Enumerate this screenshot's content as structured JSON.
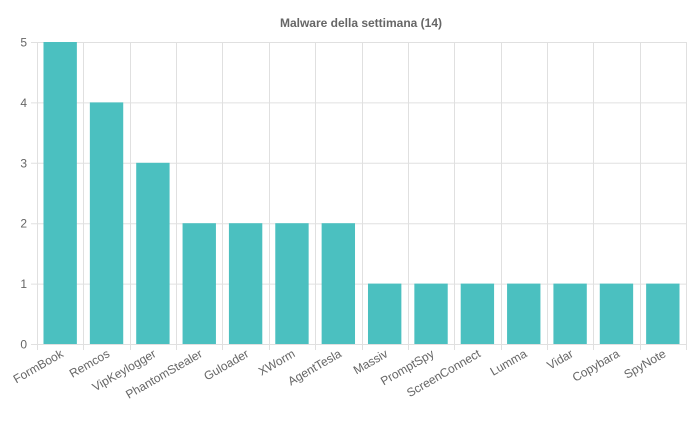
{
  "chart_data": {
    "type": "bar",
    "title": "Malware della settimana (14)",
    "xlabel": "",
    "ylabel": "",
    "categories": [
      "FormBook",
      "Remcos",
      "VipKeylogger",
      "PhantomStealer",
      "Guloader",
      "XWorm",
      "AgentTesla",
      "Massiv",
      "PromptSpy",
      "ScreenConnect",
      "Lumma",
      "Vidar",
      "Copybara",
      "SpyNote"
    ],
    "values": [
      5,
      4,
      3,
      2,
      2,
      2,
      2,
      1,
      1,
      1,
      1,
      1,
      1,
      1
    ],
    "ylim": [
      0,
      5
    ],
    "yticks": [
      "0",
      "1",
      "2",
      "3",
      "4",
      "5"
    ],
    "grid": true,
    "legend": "none",
    "bar_color": "#4bc0c0",
    "grid_color": "#e0e0e0",
    "text_color": "#666666"
  }
}
